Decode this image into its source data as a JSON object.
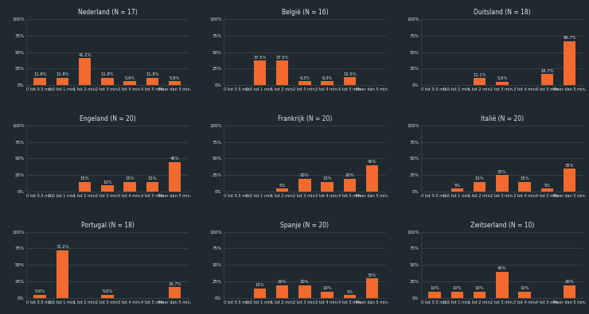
{
  "chart_data": [
    {
      "type": "bar",
      "title": "Nederland (N = 17)",
      "categories": [
        "0 tot 0.5 min.",
        "0.5 tot 1 min.",
        "1 tot 2 min.",
        "2 tot 3 min.",
        "3 tot 4 min.",
        "4 tot 5 min.",
        "Meer dan 5 min."
      ],
      "values": [
        11.8,
        11.8,
        41.2,
        11.8,
        5.9,
        11.8,
        5.9
      ],
      "value_labels": [
        "11.8%",
        "11.8%",
        "41.2%",
        "11.8%",
        "5.9%",
        "11.8%",
        "5.9%"
      ],
      "color": "#f26a2e",
      "ylim": [
        0,
        100
      ],
      "yticks": [
        {
          "value": 0,
          "label": "0%"
        },
        {
          "value": 25,
          "label": "25%"
        },
        {
          "value": 50,
          "label": "50%"
        },
        {
          "value": 75,
          "label": "75%"
        },
        {
          "value": 100,
          "label": "100%"
        }
      ],
      "grid": true,
      "data_labels": true
    },
    {
      "type": "bar",
      "title": "België (N = 16)",
      "categories": [
        "0 tot 0.5 min.",
        "0.5 tot 1 min.",
        "1 tot 2 min.",
        "2 tot 3 min.",
        "3 tot 4 min.",
        "4 tot 5 min.",
        "Meer dan 5 min."
      ],
      "values": [
        0,
        37.5,
        37.5,
        6.3,
        6.3,
        12.5,
        0
      ],
      "value_labels": [
        null,
        "37.5%",
        "37.5%",
        "6.3%",
        "6.3%",
        "12.5%",
        null
      ],
      "color": "#f26a2e",
      "ylim": [
        0,
        100
      ],
      "yticks": [
        {
          "value": 0,
          "label": "0%"
        },
        {
          "value": 25,
          "label": "25%"
        },
        {
          "value": 50,
          "label": "50%"
        },
        {
          "value": 75,
          "label": "75%"
        },
        {
          "value": 100,
          "label": "100%"
        }
      ],
      "grid": true,
      "data_labels": true
    },
    {
      "type": "bar",
      "title": "Duitsland (N = 18)",
      "categories": [
        "0 tot 0.5 min.",
        "0.5 tot 1 min.",
        "1 tot 2 min.",
        "2 tot 3 min.",
        "3 tot 4 min.",
        "4 tot 5 min.",
        "Meer dan 5 min."
      ],
      "values": [
        0,
        0,
        11.1,
        5.6,
        0,
        16.7,
        66.7
      ],
      "value_labels": [
        null,
        null,
        "11.1%",
        "5.6%",
        null,
        "16.7%",
        "66.7%"
      ],
      "color": "#f26a2e",
      "ylim": [
        0,
        100
      ],
      "yticks": [
        {
          "value": 0,
          "label": "0%"
        },
        {
          "value": 25,
          "label": "25%"
        },
        {
          "value": 50,
          "label": "50%"
        },
        {
          "value": 75,
          "label": "75%"
        },
        {
          "value": 100,
          "label": "100%"
        }
      ],
      "grid": true,
      "data_labels": true
    },
    {
      "type": "bar",
      "title": "Engeland (N = 20)",
      "categories": [
        "0 tot 0.5 min.",
        "0.5 tot 1 min.",
        "1 tot 2 min.",
        "2 tot 3 min.",
        "3 tot 4 min.",
        "4 tot 5 min.",
        "Meer dan 5 min."
      ],
      "values": [
        0,
        0,
        15,
        10,
        15,
        15,
        45
      ],
      "value_labels": [
        null,
        null,
        "15%",
        "10%",
        "15%",
        "15%",
        "45%"
      ],
      "color": "#f26a2e",
      "ylim": [
        0,
        100
      ],
      "yticks": [
        {
          "value": 0,
          "label": "0%"
        },
        {
          "value": 25,
          "label": "25%"
        },
        {
          "value": 50,
          "label": "50%"
        },
        {
          "value": 75,
          "label": "75%"
        },
        {
          "value": 100,
          "label": "100%"
        }
      ],
      "grid": true,
      "data_labels": true
    },
    {
      "type": "bar",
      "title": "Frankrijk (N = 20)",
      "categories": [
        "0 tot 0.5 min.",
        "0.5 tot 1 min.",
        "1 tot 2 min.",
        "2 tot 3 min.",
        "3 tot 4 min.",
        "4 tot 5 min.",
        "Meer dan 5 min."
      ],
      "values": [
        0,
        0,
        5,
        20,
        15,
        20,
        40
      ],
      "value_labels": [
        null,
        null,
        "5%",
        "20%",
        "15%",
        "20%",
        "40%"
      ],
      "color": "#f26a2e",
      "ylim": [
        0,
        100
      ],
      "yticks": [
        {
          "value": 0,
          "label": "0%"
        },
        {
          "value": 25,
          "label": "25%"
        },
        {
          "value": 50,
          "label": "50%"
        },
        {
          "value": 75,
          "label": "75%"
        },
        {
          "value": 100,
          "label": "100%"
        }
      ],
      "grid": true,
      "data_labels": true
    },
    {
      "type": "bar",
      "title": "Italië (N = 20)",
      "categories": [
        "0 tot 0.5 min.",
        "0.5 tot 1 min.",
        "1 tot 2 min.",
        "2 tot 3 min.",
        "3 tot 4 min.",
        "4 tot 5 min.",
        "Meer dan 5 min."
      ],
      "values": [
        0,
        5,
        15,
        25,
        15,
        5,
        35
      ],
      "value_labels": [
        null,
        "5%",
        "15%",
        "25%",
        "15%",
        "5%",
        "35%"
      ],
      "color": "#f26a2e",
      "ylim": [
        0,
        100
      ],
      "yticks": [
        {
          "value": 0,
          "label": "0%"
        },
        {
          "value": 25,
          "label": "25%"
        },
        {
          "value": 50,
          "label": "50%"
        },
        {
          "value": 75,
          "label": "75%"
        },
        {
          "value": 100,
          "label": "100%"
        }
      ],
      "grid": true,
      "data_labels": true
    },
    {
      "type": "bar",
      "title": "Portugal (N = 18)",
      "categories": [
        "0 tot 0.5 min.",
        "0.5 tot 1 min.",
        "1 tot 2 min.",
        "2 tot 3 min.",
        "3 tot 4 min.",
        "4 tot 5 min.",
        "Meer dan 5 min."
      ],
      "values": [
        5.6,
        72.2,
        0,
        5.6,
        0,
        0,
        16.7
      ],
      "value_labels": [
        "5.6%",
        "72.2%",
        null,
        "5.6%",
        null,
        null,
        "16.7%"
      ],
      "color": "#f26a2e",
      "ylim": [
        0,
        100
      ],
      "yticks": [
        {
          "value": 0,
          "label": "0%"
        },
        {
          "value": 25,
          "label": "25%"
        },
        {
          "value": 50,
          "label": "50%"
        },
        {
          "value": 75,
          "label": "75%"
        },
        {
          "value": 100,
          "label": "100%"
        }
      ],
      "grid": true,
      "data_labels": true
    },
    {
      "type": "bar",
      "title": "Spanje (N = 20)",
      "categories": [
        "0 tot 0.5 min.",
        "0.5 tot 1 min.",
        "1 tot 2 min.",
        "2 tot 3 min.",
        "3 tot 4 min.",
        "4 tot 5 min.",
        "Meer dan 5 min."
      ],
      "values": [
        0,
        15,
        20,
        20,
        10,
        5,
        30
      ],
      "value_labels": [
        null,
        "15%",
        "20%",
        "20%",
        "10%",
        "5%",
        "30%"
      ],
      "color": "#f26a2e",
      "ylim": [
        0,
        100
      ],
      "yticks": [
        {
          "value": 0,
          "label": "0%"
        },
        {
          "value": 25,
          "label": "25%"
        },
        {
          "value": 50,
          "label": "50%"
        },
        {
          "value": 75,
          "label": "75%"
        },
        {
          "value": 100,
          "label": "100%"
        }
      ],
      "grid": true,
      "data_labels": true
    },
    {
      "type": "bar",
      "title": "Zwitserland (N = 10)",
      "categories": [
        "0 tot 0.5 min.",
        "0.5 tot 1 min.",
        "1 tot 2 min.",
        "2 tot 3 min.",
        "3 tot 4 min.",
        "4 tot 5 min.",
        "Meer dan 5 min."
      ],
      "values": [
        10,
        10,
        10,
        40,
        10,
        0,
        20
      ],
      "value_labels": [
        "10%",
        "10%",
        "10%",
        "40%",
        "10%",
        null,
        "20%"
      ],
      "color": "#f26a2e",
      "ylim": [
        0,
        100
      ],
      "yticks": [
        {
          "value": 0,
          "label": "0%"
        },
        {
          "value": 25,
          "label": "25%"
        },
        {
          "value": 50,
          "label": "50%"
        },
        {
          "value": 75,
          "label": "75%"
        },
        {
          "value": 100,
          "label": "100%"
        }
      ],
      "grid": true,
      "data_labels": true
    }
  ]
}
